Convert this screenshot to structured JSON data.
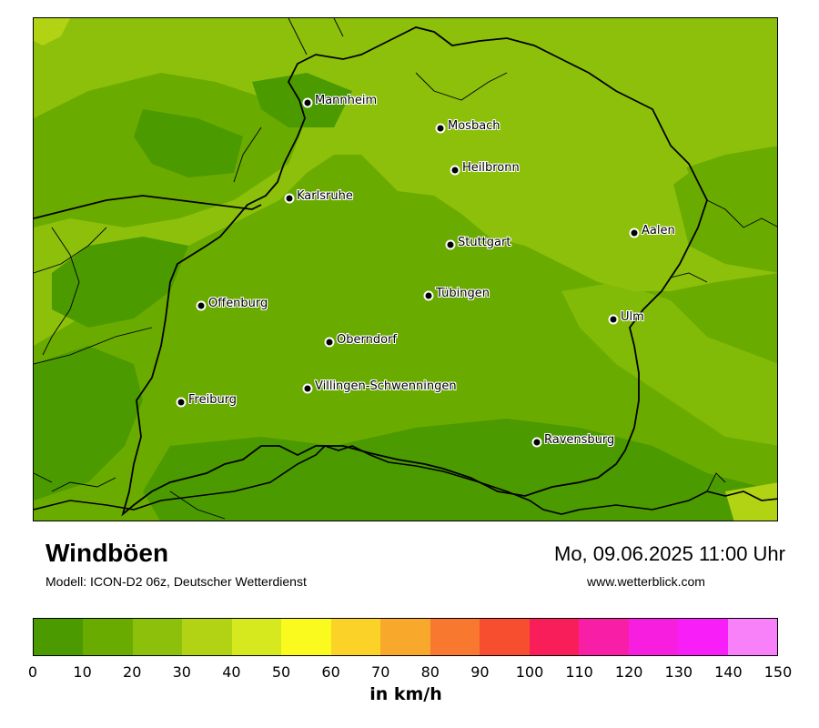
{
  "map": {
    "title": "Windböen",
    "model": "Modell: ICON-D2 06z, Deutscher Wetterdienst",
    "datetime": "Mo, 09.06.2025 11:00 Uhr",
    "website": "www.wetterblick.com",
    "cities": [
      {
        "name": "Mannheim"
      },
      {
        "name": "Mosbach"
      },
      {
        "name": "Heilbronn"
      },
      {
        "name": "Karlsruhe"
      },
      {
        "name": "Stuttgart"
      },
      {
        "name": "Aalen"
      },
      {
        "name": "Tübingen"
      },
      {
        "name": "Offenburg"
      },
      {
        "name": "Ulm"
      },
      {
        "name": "Oberndorf"
      },
      {
        "name": "Villingen-Schwenningen"
      },
      {
        "name": "Freiburg"
      },
      {
        "name": "Ravensburg"
      }
    ]
  },
  "legend": {
    "unit": "in km/h",
    "ticks": [
      "0",
      "10",
      "20",
      "30",
      "40",
      "50",
      "60",
      "70",
      "80",
      "90",
      "100",
      "110",
      "120",
      "130",
      "140",
      "150"
    ],
    "colors": [
      "#4a9a00",
      "#6aab00",
      "#8cc00a",
      "#b2d214",
      "#d6e81e",
      "#fafa1e",
      "#fad228",
      "#f8a82a",
      "#f87830",
      "#f84e30",
      "#f81e5a",
      "#f81ea6",
      "#f81ee0",
      "#f81ef8",
      "#f880f8"
    ]
  },
  "palette": {
    "light_green": "#8cc00a",
    "mid_green": "#6aab00",
    "dark_green": "#4a9a00",
    "yellow_green": "#b2d214"
  }
}
